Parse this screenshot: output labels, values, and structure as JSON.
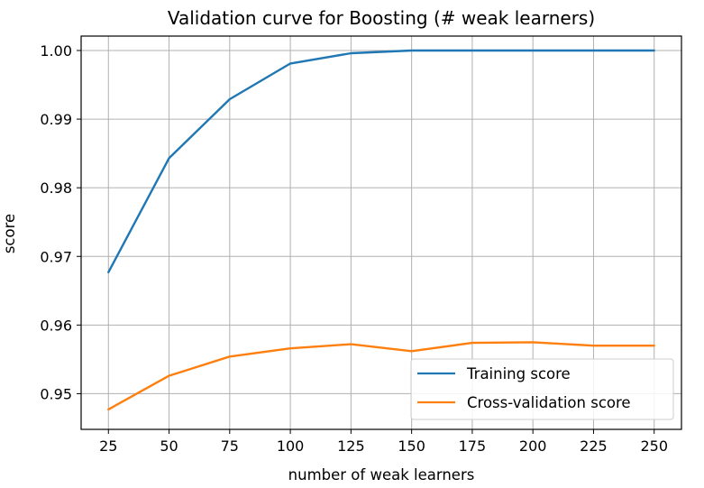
{
  "chart_data": {
    "type": "line",
    "title": "Validation curve for Boosting (# weak learners)",
    "xlabel": "number of weak learners",
    "ylabel": "score",
    "x": [
      25,
      50,
      75,
      100,
      125,
      150,
      175,
      200,
      225,
      250
    ],
    "xticks": [
      "25",
      "50",
      "75",
      "100",
      "125",
      "150",
      "175",
      "200",
      "225",
      "250"
    ],
    "yticks": [
      "0.95",
      "0.96",
      "0.97",
      "0.98",
      "0.99",
      "1.00"
    ],
    "ytick_values": [
      0.95,
      0.96,
      0.97,
      0.98,
      0.99,
      1.0
    ],
    "xlim": [
      13.75,
      261.25
    ],
    "ylim": [
      0.9448,
      1.0021
    ],
    "grid": true,
    "legend_position": "lower-right",
    "series": [
      {
        "name": "Training score",
        "color": "#1f77b4",
        "values": [
          0.9677,
          0.9843,
          0.9929,
          0.9981,
          0.9996,
          1.0,
          1.0,
          1.0,
          1.0,
          1.0
        ]
      },
      {
        "name": "Cross-validation score",
        "color": "#ff7f0e",
        "values": [
          0.9477,
          0.9526,
          0.9554,
          0.9566,
          0.9572,
          0.9562,
          0.9574,
          0.9575,
          0.957,
          0.957
        ]
      }
    ]
  }
}
